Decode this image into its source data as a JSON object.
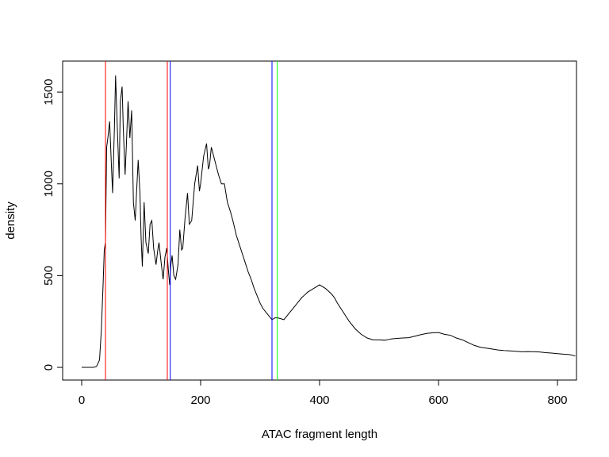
{
  "chart_data": {
    "type": "line",
    "x_label": "ATAC fragment length",
    "y_label": "density",
    "x": [
      0,
      10,
      20,
      25,
      30,
      33,
      36,
      38,
      40,
      42,
      44,
      47,
      50,
      52,
      55,
      57,
      60,
      63,
      65,
      68,
      70,
      73,
      75,
      78,
      81,
      84,
      87,
      90,
      93,
      95,
      98,
      100,
      102,
      105,
      108,
      112,
      115,
      118,
      121,
      125,
      128,
      130,
      134,
      137,
      140,
      143,
      146,
      148,
      150,
      152,
      155,
      158,
      162,
      165,
      168,
      170,
      174,
      178,
      181,
      185,
      190,
      195,
      198,
      200,
      205,
      210,
      213,
      215,
      218,
      222,
      226,
      230,
      235,
      240,
      245,
      250,
      255,
      260,
      265,
      270,
      275,
      280,
      285,
      290,
      295,
      300,
      305,
      310,
      315,
      320,
      325,
      330,
      335,
      340,
      345,
      350,
      355,
      360,
      365,
      370,
      375,
      380,
      385,
      390,
      395,
      400,
      405,
      410,
      415,
      420,
      425,
      430,
      440,
      450,
      460,
      470,
      480,
      490,
      500,
      510,
      520,
      530,
      540,
      550,
      560,
      570,
      580,
      590,
      600,
      610,
      620,
      630,
      640,
      650,
      660,
      670,
      680,
      690,
      700,
      710,
      720,
      730,
      740,
      750,
      760,
      770,
      780,
      790,
      800,
      810,
      820,
      830
    ],
    "series": [
      {
        "name": "density",
        "color": "#000000",
        "values": [
          0,
          0,
          0,
          5,
          40,
          200,
          450,
          640,
          680,
          1200,
          1250,
          1340,
          1100,
          950,
          1300,
          1590,
          1300,
          1030,
          1450,
          1530,
          1300,
          1050,
          1200,
          1450,
          1250,
          1400,
          900,
          800,
          1000,
          1130,
          950,
          700,
          550,
          900,
          680,
          620,
          780,
          800,
          650,
          560,
          640,
          680,
          560,
          480,
          600,
          650,
          520,
          450,
          560,
          610,
          500,
          480,
          560,
          750,
          640,
          650,
          820,
          950,
          780,
          800,
          1000,
          1100,
          960,
          1000,
          1150,
          1220,
          1080,
          1100,
          1200,
          1150,
          1100,
          1050,
          1000,
          1000,
          900,
          850,
          790,
          720,
          670,
          620,
          570,
          520,
          480,
          430,
          390,
          350,
          320,
          300,
          280,
          260,
          270,
          270,
          265,
          260,
          280,
          300,
          320,
          340,
          360,
          380,
          395,
          410,
          420,
          430,
          440,
          450,
          440,
          430,
          415,
          400,
          380,
          350,
          300,
          250,
          210,
          180,
          160,
          150,
          150,
          148,
          155,
          158,
          160,
          162,
          170,
          178,
          185,
          188,
          190,
          180,
          175,
          160,
          150,
          135,
          120,
          110,
          105,
          100,
          95,
          92,
          90,
          88,
          85,
          86,
          85,
          84,
          80,
          78,
          75,
          72,
          70,
          62
        ]
      }
    ],
    "vlines": [
      {
        "x": 40,
        "color": "#ff0000"
      },
      {
        "x": 144,
        "color": "#ff0000"
      },
      {
        "x": 149,
        "color": "#0000ff"
      },
      {
        "x": 320,
        "color": "#0000ff"
      },
      {
        "x": 329,
        "color": "#00ff00"
      }
    ],
    "xlim": [
      -32,
      832
    ],
    "ylim": [
      -69,
      1669
    ],
    "xticks": [
      0,
      200,
      400,
      600,
      800
    ],
    "yticks": [
      0,
      500,
      1000,
      1500
    ]
  }
}
